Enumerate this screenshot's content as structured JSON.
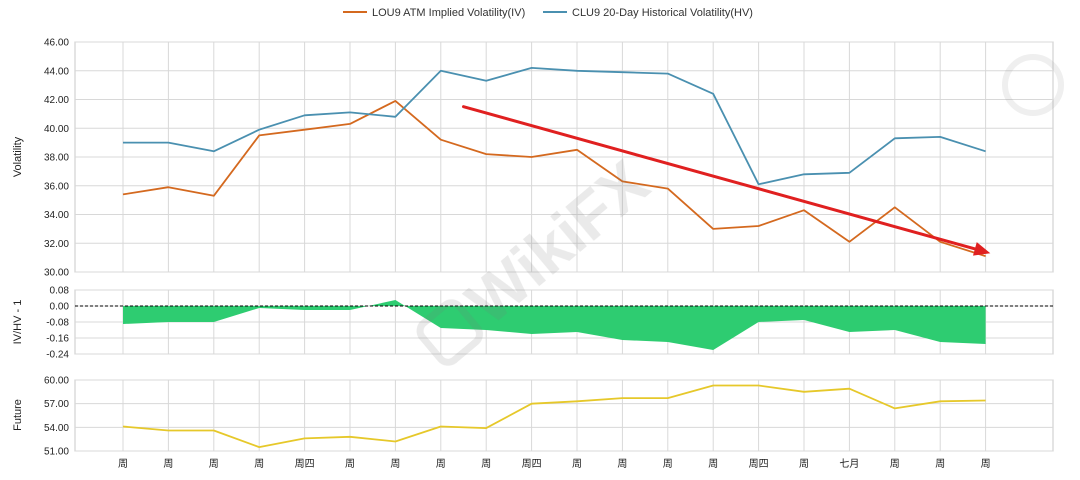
{
  "legend": {
    "iv_label": "LOU9 ATM Implied Volatility(IV)",
    "hv_label": "CLU9 20-Day Historical Volatility(HV)"
  },
  "colors": {
    "iv": "#d4691f",
    "hv": "#4a90b0",
    "ratio_fill": "#2ecc71",
    "future": "#e6c82a",
    "arrow": "#e02020",
    "grid": "#d8d8d8"
  },
  "watermark": "WikiFX",
  "chart_data": [
    {
      "type": "line",
      "ylabel": "Volatility",
      "ylim": [
        30,
        46
      ],
      "yticks": [
        "46.00",
        "44.00",
        "42.00",
        "40.00",
        "38.00",
        "36.00",
        "34.00",
        "32.00",
        "30.00"
      ],
      "tick_values": [
        46,
        44,
        42,
        40,
        38,
        36,
        34,
        32,
        30
      ],
      "series": [
        {
          "name": "LOU9 ATM Implied Volatility(IV)",
          "values": [
            35.4,
            35.9,
            35.3,
            39.5,
            39.9,
            40.3,
            41.9,
            39.2,
            38.2,
            38.0,
            38.5,
            36.3,
            35.8,
            33.0,
            33.2,
            34.3,
            32.1,
            34.5,
            32.1,
            31.1
          ]
        },
        {
          "name": "CLU9 20-Day Historical Volatility(HV)",
          "values": [
            39.0,
            39.0,
            38.4,
            39.9,
            40.9,
            41.1,
            40.8,
            44.0,
            43.3,
            44.2,
            44.0,
            43.9,
            43.8,
            42.4,
            36.1,
            36.8,
            36.9,
            39.3,
            39.4,
            38.4
          ]
        }
      ],
      "annotation": {
        "type": "arrow",
        "from": [
          7.5,
          41.5
        ],
        "to": [
          19.5,
          31.1
        ]
      }
    },
    {
      "type": "area",
      "ylabel": "IV/HV - 1",
      "ylim": [
        -0.24,
        0.08
      ],
      "yticks": [
        "0.08",
        "0.00",
        "-0.08",
        "-0.16",
        "-0.24"
      ],
      "tick_values": [
        0.08,
        0.0,
        -0.08,
        -0.16,
        -0.24
      ],
      "values": [
        -0.09,
        -0.08,
        -0.08,
        -0.01,
        -0.02,
        -0.02,
        0.03,
        -0.11,
        -0.12,
        -0.14,
        -0.13,
        -0.17,
        -0.18,
        -0.22,
        -0.08,
        -0.07,
        -0.13,
        -0.12,
        -0.18,
        -0.19
      ],
      "zero_line": true
    },
    {
      "type": "line",
      "ylabel": "Future",
      "ylim": [
        51,
        60
      ],
      "yticks": [
        "60.00",
        "57.00",
        "54.00",
        "51.00"
      ],
      "tick_values": [
        60,
        57,
        54,
        51
      ],
      "values": [
        54.1,
        53.6,
        53.6,
        51.5,
        52.6,
        52.8,
        52.2,
        54.1,
        53.9,
        57.0,
        57.3,
        57.7,
        57.7,
        59.3,
        59.3,
        58.5,
        58.9,
        56.4,
        57.3,
        57.4
      ]
    }
  ],
  "x_categories": [
    "周",
    "周",
    "周",
    "周",
    "周四",
    "周",
    "周",
    "周",
    "周",
    "周四",
    "周",
    "周",
    "周",
    "周",
    "周四",
    "周",
    "七月",
    "周",
    "周",
    "周"
  ]
}
